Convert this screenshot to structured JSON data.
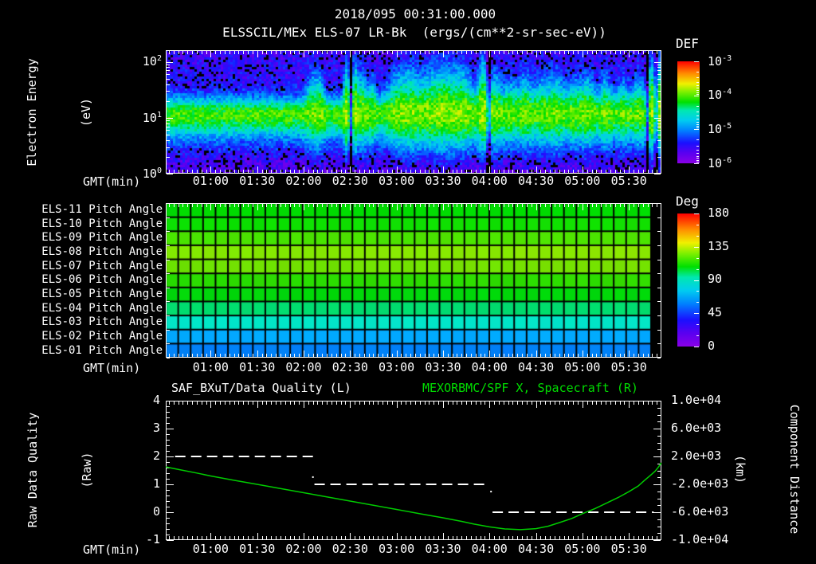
{
  "page": {
    "background": "#000000",
    "foreground": "#ffffff",
    "accent_green": "#00dd00"
  },
  "header": {
    "title": "2018/095 00:31:00.000",
    "subtitle": "ELSSCIL/MEx ELS-07 LR-Bk  (ergs/(cm**2-sr-sec-eV))"
  },
  "time_axis": {
    "label": "GMT(min)",
    "start_gmt": "00:31:00",
    "span_min": 320,
    "minor_step_min": 3,
    "tick_labels": [
      "01:00",
      "01:30",
      "02:00",
      "02:30",
      "03:00",
      "03:30",
      "04:00",
      "04:30",
      "05:00",
      "05:30"
    ],
    "tick_offsets_min": [
      29,
      59,
      89,
      119,
      149,
      179,
      209,
      239,
      269,
      299
    ]
  },
  "chart_data": [
    {
      "id": "electron_energy_spectrogram",
      "type": "heatmap",
      "instrument": "ELSSCIL/MEx ELS-07 LR-Bk",
      "units": "ergs/(cm**2-sr-sec-eV)",
      "ylabel_lines": [
        "Electron Energy",
        "(eV)"
      ],
      "y_scale": "log",
      "y_ticks": [
        "10^0",
        "10^1",
        "10^2"
      ],
      "y_decades_shown": 2.2,
      "colorbar": {
        "title": "DEF",
        "tick_labels": [
          "10^-3",
          "10^-4",
          "10^-5",
          "10^-6"
        ]
      },
      "band": {
        "center_log10_eV": 1.06,
        "core_flux_log10": -4.2,
        "background_flux_log10": -5.78
      },
      "features_min_width_amp": [
        [
          95,
          3,
          0.5
        ],
        [
          100,
          2,
          0.4
        ],
        [
          117,
          1.5,
          1.0
        ],
        [
          122,
          1.5,
          0.95
        ],
        [
          127,
          2,
          0.6
        ],
        [
          133,
          2,
          0.4
        ],
        [
          149,
          5,
          0.5
        ],
        [
          158,
          4,
          0.45
        ],
        [
          170,
          8,
          0.5
        ],
        [
          182,
          7,
          0.55
        ],
        [
          193,
          5,
          0.5
        ],
        [
          205,
          2.5,
          1.0
        ],
        [
          213,
          3,
          0.55
        ],
        [
          222,
          3,
          0.35
        ],
        [
          232,
          4,
          0.5
        ],
        [
          243,
          3,
          0.4
        ],
        [
          252,
          4,
          0.55
        ],
        [
          263,
          3,
          0.35
        ],
        [
          272,
          4,
          0.5
        ],
        [
          284,
          3,
          0.45
        ],
        [
          295,
          3,
          0.35
        ],
        [
          305,
          3,
          0.4
        ],
        [
          314,
          2.5,
          1.15
        ],
        [
          318,
          1.5,
          0.9
        ]
      ],
      "dropout_times_min": [
        [
          119.5,
          0.8
        ],
        [
          208.5,
          0.7
        ],
        [
          311,
          0.8
        ],
        [
          316.5,
          0.7
        ]
      ]
    },
    {
      "id": "pitch_angle_grid",
      "type": "heatmap",
      "xlabel": "GMT(min)",
      "columns": 39,
      "column_span_min": 8,
      "colorbar": {
        "title": "Deg",
        "tick_values": [
          180,
          135,
          90,
          45,
          0
        ]
      },
      "rows": [
        {
          "label": "ELS-11 Pitch Angle",
          "pitch_deg": 106,
          "color": "#00dc00"
        },
        {
          "label": "ELS-10 Pitch Angle",
          "pitch_deg": 107,
          "color": "#0ae000"
        },
        {
          "label": "ELS-09 Pitch Angle",
          "pitch_deg": 112,
          "color": "#46e400"
        },
        {
          "label": "ELS-08 Pitch Angle",
          "pitch_deg": 118,
          "color": "#82e800"
        },
        {
          "label": "ELS-07 Pitch Angle",
          "pitch_deg": 116,
          "color": "#6ee200"
        },
        {
          "label": "ELS-06 Pitch Angle",
          "pitch_deg": 109,
          "color": "#28dc00"
        },
        {
          "label": "ELS-05 Pitch Angle",
          "pitch_deg": 104,
          "color": "#00d80a"
        },
        {
          "label": "ELS-04 Pitch Angle",
          "pitch_deg": 95,
          "color": "#00dc6e"
        },
        {
          "label": "ELS-03 Pitch Angle",
          "pitch_deg": 82,
          "color": "#00e6c8"
        },
        {
          "label": "ELS-02 Pitch Angle",
          "pitch_deg": 62,
          "color": "#00aaff"
        },
        {
          "label": "ELS-01 Pitch Angle",
          "pitch_deg": 52,
          "color": "#0080f8"
        }
      ]
    },
    {
      "id": "quality_and_position",
      "type": "line",
      "left_series": {
        "name": "SAF_BXuT/Data Quality (L)",
        "color": "#ffffff",
        "line_style": "dashed",
        "ylabel_lines": [
          "Raw Data Quality",
          "(Raw)"
        ],
        "y_ticks": [
          4,
          3,
          2,
          1,
          0,
          -1
        ],
        "y_range": [
          -1,
          4
        ],
        "segments_value_tstart_tend": [
          [
            2,
            6,
            96
          ],
          [
            1,
            96,
            207
          ],
          [
            0,
            211,
            315
          ]
        ],
        "stray_points_t_value": [
          [
            95,
            1.26
          ],
          [
            210,
            0.74
          ]
        ]
      },
      "right_series": {
        "name": "MEXORBMC/SPF X, Spacecraft (R)",
        "color": "#00dd00",
        "ylabel_lines": [
          "Component Distance",
          "(km)"
        ],
        "y_tick_labels": [
          "1.0e+04",
          "6.0e+03",
          "2.0e+03",
          "-2.0e+03",
          "-6.0e+03",
          "-1.0e+04"
        ],
        "y_tick_values": [
          10000,
          6000,
          2000,
          -2000,
          -6000,
          -10000
        ],
        "y_range": [
          -10000,
          10000
        ],
        "points_t_km": [
          [
            0,
            500
          ],
          [
            10,
            60
          ],
          [
            20,
            -380
          ],
          [
            29,
            -800
          ],
          [
            44,
            -1420
          ],
          [
            59,
            -2000
          ],
          [
            74,
            -2600
          ],
          [
            89,
            -3200
          ],
          [
            104,
            -3800
          ],
          [
            119,
            -4400
          ],
          [
            134,
            -5000
          ],
          [
            149,
            -5600
          ],
          [
            164,
            -6220
          ],
          [
            179,
            -6800
          ],
          [
            191,
            -7320
          ],
          [
            199,
            -7700
          ],
          [
            209,
            -8100
          ],
          [
            219,
            -8400
          ],
          [
            229,
            -8500
          ],
          [
            239,
            -8350
          ],
          [
            247,
            -8000
          ],
          [
            254,
            -7500
          ],
          [
            262,
            -6900
          ],
          [
            269,
            -6200
          ],
          [
            277,
            -5500
          ],
          [
            284,
            -4750
          ],
          [
            292,
            -3900
          ],
          [
            299,
            -3050
          ],
          [
            305,
            -2250
          ],
          [
            309,
            -1450
          ],
          [
            313,
            -700
          ],
          [
            316,
            -100
          ],
          [
            318,
            450
          ],
          [
            320,
            1100
          ]
        ]
      }
    }
  ]
}
